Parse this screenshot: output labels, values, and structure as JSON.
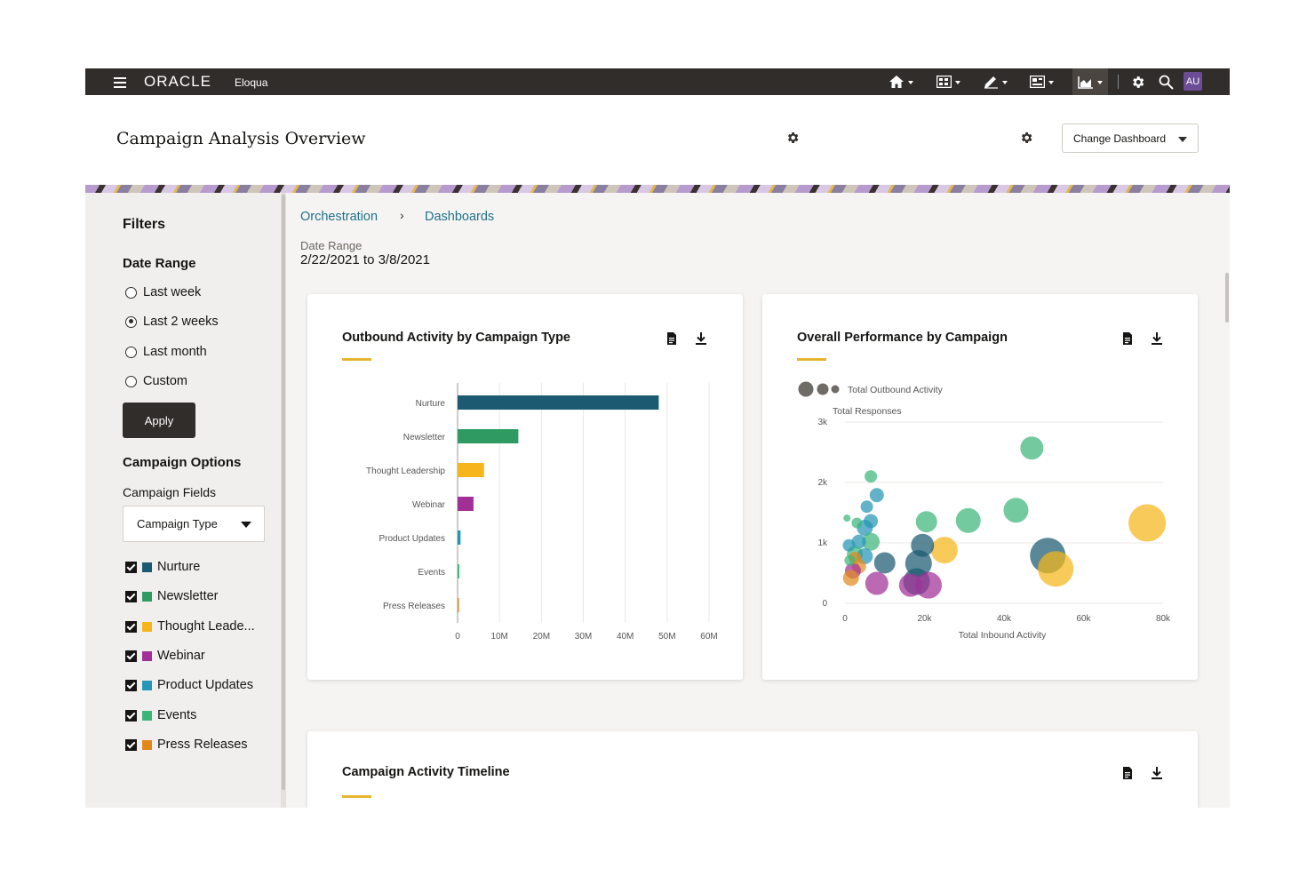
{
  "topbar": {
    "brand": "ORACLE",
    "product": "Eloqua",
    "avatar": "AU",
    "nav_icons": [
      "home-icon",
      "grid-icon",
      "edit-icon",
      "layout-icon",
      "chart-icon",
      "gear-icon",
      "search-icon"
    ]
  },
  "header": {
    "title": "Campaign Analysis Overview",
    "change_dashboard": "Change Dashboard"
  },
  "filters": {
    "title": "Filters",
    "date_range_label": "Date Range",
    "date_options": [
      {
        "label": "Last week",
        "selected": false
      },
      {
        "label": "Last 2 weeks",
        "selected": true
      },
      {
        "label": "Last month",
        "selected": false
      },
      {
        "label": "Custom",
        "selected": false
      }
    ],
    "apply_label": "Apply",
    "campaign_options_label": "Campaign Options",
    "campaign_fields_label": "Campaign Fields",
    "campaign_field_value": "Campaign Type",
    "types": [
      {
        "label": "Nurture",
        "checked": true,
        "color": "#1b5a70"
      },
      {
        "label": "Newsletter",
        "checked": true,
        "color": "#2f9a62"
      },
      {
        "label": "Thought Leade...",
        "checked": true,
        "color": "#f5b51b"
      },
      {
        "label": "Webinar",
        "checked": true,
        "color": "#a22f97"
      },
      {
        "label": "Product Updates",
        "checked": true,
        "color": "#2596b5"
      },
      {
        "label": "Events",
        "checked": true,
        "color": "#3db57a"
      },
      {
        "label": "Press Releases",
        "checked": true,
        "color": "#e08a1e"
      }
    ]
  },
  "breadcrumb": {
    "items": [
      "Orchestration",
      "Dashboards"
    ],
    "separator": "›"
  },
  "date_range": {
    "label": "Date Range",
    "value": "2/22/2021 to 3/8/2021"
  },
  "cards": {
    "outbound": {
      "title": "Outbound Activity by Campaign Type"
    },
    "performance": {
      "title": "Overall Performance by Campaign"
    },
    "timeline": {
      "title": "Campaign Activity Timeline"
    }
  },
  "chart_data": [
    {
      "type": "bar",
      "orientation": "horizontal",
      "title": "Outbound Activity by Campaign Type",
      "categories": [
        "Nurture",
        "Newsletter",
        "Thought Leadership",
        "Webinar",
        "Product Updates",
        "Events",
        "Press Releases"
      ],
      "values": [
        48000000,
        14500000,
        6300000,
        3800000,
        700000,
        400000,
        300000
      ],
      "colors": [
        "#1b5a70",
        "#2f9a62",
        "#f5b51b",
        "#a22f97",
        "#2596b5",
        "#3db57a",
        "#e08a1e"
      ],
      "x_ticks": [
        "0",
        "10M",
        "20M",
        "30M",
        "40M",
        "50M",
        "60M"
      ],
      "xlim": [
        0,
        60000000
      ],
      "grid": true
    },
    {
      "type": "scatter",
      "title": "Overall Performance by Campaign",
      "xlabel": "Total Inbound Activity",
      "ylabel": "Total Responses",
      "size_legend": "Total Outbound Activity",
      "x_ticks": [
        "0",
        "20k",
        "40k",
        "60k",
        "80k"
      ],
      "y_ticks": [
        "0",
        "1k",
        "2k",
        "3k"
      ],
      "xlim": [
        0,
        80000
      ],
      "ylim": [
        0,
        3000
      ],
      "grid": true,
      "points": [
        {
          "x": 47000,
          "y": 2570,
          "s": 13,
          "c": "#3db57a"
        },
        {
          "x": 76000,
          "y": 1330,
          "s": 21,
          "c": "#f5b51b"
        },
        {
          "x": 43000,
          "y": 1540,
          "s": 14,
          "c": "#3db57a"
        },
        {
          "x": 31000,
          "y": 1370,
          "s": 14,
          "c": "#3db57a"
        },
        {
          "x": 20500,
          "y": 1350,
          "s": 12,
          "c": "#3db57a"
        },
        {
          "x": 51000,
          "y": 790,
          "s": 20,
          "c": "#1b5a70"
        },
        {
          "x": 53000,
          "y": 570,
          "s": 20,
          "c": "#f5b51b"
        },
        {
          "x": 25000,
          "y": 880,
          "s": 15,
          "c": "#f5b51b"
        },
        {
          "x": 19500,
          "y": 960,
          "s": 13,
          "c": "#1b5a70"
        },
        {
          "x": 18500,
          "y": 660,
          "s": 15,
          "c": "#1b5a70"
        },
        {
          "x": 18000,
          "y": 360,
          "s": 15,
          "c": "#1b5a70"
        },
        {
          "x": 21000,
          "y": 300,
          "s": 15,
          "c": "#a22f97"
        },
        {
          "x": 16500,
          "y": 300,
          "s": 13,
          "c": "#a22f97"
        },
        {
          "x": 8000,
          "y": 330,
          "s": 13,
          "c": "#a22f97"
        },
        {
          "x": 10000,
          "y": 670,
          "s": 12,
          "c": "#1b5a70"
        },
        {
          "x": 6500,
          "y": 2100,
          "s": 7,
          "c": "#3db57a"
        },
        {
          "x": 8000,
          "y": 1790,
          "s": 8,
          "c": "#2596b5"
        },
        {
          "x": 5500,
          "y": 1600,
          "s": 7,
          "c": "#2596b5"
        },
        {
          "x": 6500,
          "y": 1360,
          "s": 8,
          "c": "#2596b5"
        },
        {
          "x": 5000,
          "y": 1250,
          "s": 9,
          "c": "#2596b5"
        },
        {
          "x": 6500,
          "y": 1020,
          "s": 10,
          "c": "#3db57a"
        },
        {
          "x": 3500,
          "y": 1020,
          "s": 8,
          "c": "#2596b5"
        },
        {
          "x": 2500,
          "y": 820,
          "s": 9,
          "c": "#3db57a"
        },
        {
          "x": 5000,
          "y": 780,
          "s": 9,
          "c": "#2596b5"
        },
        {
          "x": 3500,
          "y": 610,
          "s": 8,
          "c": "#e08a1e"
        },
        {
          "x": 2000,
          "y": 540,
          "s": 9,
          "c": "#a22f97"
        },
        {
          "x": 1500,
          "y": 420,
          "s": 9,
          "c": "#e08a1e"
        },
        {
          "x": 1000,
          "y": 960,
          "s": 7,
          "c": "#2596b5"
        },
        {
          "x": 500,
          "y": 1410,
          "s": 4,
          "c": "#3db57a"
        },
        {
          "x": 3000,
          "y": 1330,
          "s": 6,
          "c": "#3db57a"
        },
        {
          "x": 2500,
          "y": 750,
          "s": 7,
          "c": "#e08a1e"
        },
        {
          "x": 1200,
          "y": 710,
          "s": 6,
          "c": "#3db57a"
        }
      ]
    }
  ]
}
